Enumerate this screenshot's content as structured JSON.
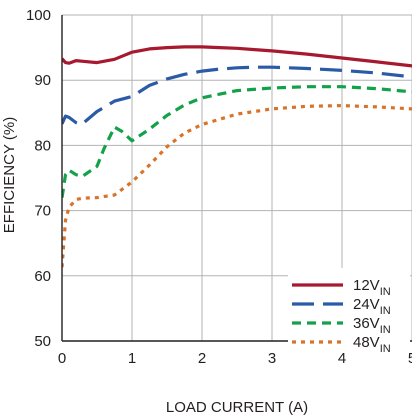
{
  "chart_data": {
    "type": "line",
    "xlabel": "LOAD CURRENT (A)",
    "ylabel": "EFFICIENCY (%)",
    "xlim": [
      0,
      5
    ],
    "ylim": [
      50,
      100
    ],
    "xticks": [
      "0",
      "1",
      "2",
      "3",
      "4",
      "5"
    ],
    "yticks": [
      "50",
      "60",
      "70",
      "80",
      "90",
      "100"
    ],
    "grid": true,
    "legend_position": "bottom-right",
    "series": [
      {
        "name": "12V",
        "name_sub": "IN",
        "color": "#a6192e",
        "dash": "solid",
        "x": [
          0.0,
          0.05,
          0.1,
          0.2,
          0.3,
          0.5,
          0.75,
          1.0,
          1.25,
          1.5,
          1.75,
          2.0,
          2.25,
          2.5,
          2.75,
          3.0,
          3.5,
          4.0,
          4.5,
          5.0
        ],
        "y": [
          93.3,
          92.7,
          92.6,
          93.0,
          92.9,
          92.7,
          93.2,
          94.3,
          94.8,
          95.0,
          95.1,
          95.1,
          95.0,
          94.9,
          94.7,
          94.5,
          94.0,
          93.4,
          92.8,
          92.2
        ]
      },
      {
        "name": "24V",
        "name_sub": "IN",
        "color": "#2b5ba6",
        "dash": "long-dash",
        "x": [
          0.0,
          0.05,
          0.1,
          0.2,
          0.28,
          0.5,
          0.75,
          1.0,
          1.25,
          1.5,
          1.75,
          2.0,
          2.25,
          2.5,
          2.75,
          3.0,
          3.5,
          4.0,
          4.5,
          5.0
        ],
        "y": [
          83.3,
          84.5,
          84.3,
          83.5,
          83.2,
          85.2,
          86.8,
          87.5,
          89.2,
          90.2,
          90.9,
          91.4,
          91.7,
          91.9,
          92.0,
          92.0,
          91.8,
          91.5,
          91.1,
          90.5
        ]
      },
      {
        "name": "36V",
        "name_sub": "IN",
        "color": "#13a14a",
        "dash": "dash",
        "x": [
          0.0,
          0.05,
          0.1,
          0.2,
          0.3,
          0.5,
          0.6,
          0.75,
          0.85,
          1.0,
          1.25,
          1.5,
          1.75,
          2.0,
          2.5,
          3.0,
          3.5,
          4.0,
          4.5,
          5.0
        ],
        "y": [
          72.0,
          75.5,
          76.2,
          75.5,
          75.3,
          76.8,
          79.5,
          82.8,
          82.2,
          80.7,
          82.5,
          84.6,
          86.2,
          87.3,
          88.4,
          88.8,
          89.0,
          89.0,
          88.7,
          88.2
        ]
      },
      {
        "name": "48V",
        "name_sub": "IN",
        "color": "#d8732a",
        "dash": "dot",
        "x": [
          0.0,
          0.05,
          0.1,
          0.2,
          0.3,
          0.5,
          0.75,
          1.0,
          1.25,
          1.5,
          1.75,
          2.0,
          2.5,
          3.0,
          3.5,
          4.0,
          4.5,
          5.0
        ],
        "y": [
          61.3,
          68.5,
          70.5,
          71.7,
          71.9,
          72.0,
          72.4,
          74.4,
          77.0,
          79.8,
          81.9,
          83.2,
          84.8,
          85.6,
          86.0,
          86.1,
          85.9,
          85.6
        ]
      }
    ]
  }
}
